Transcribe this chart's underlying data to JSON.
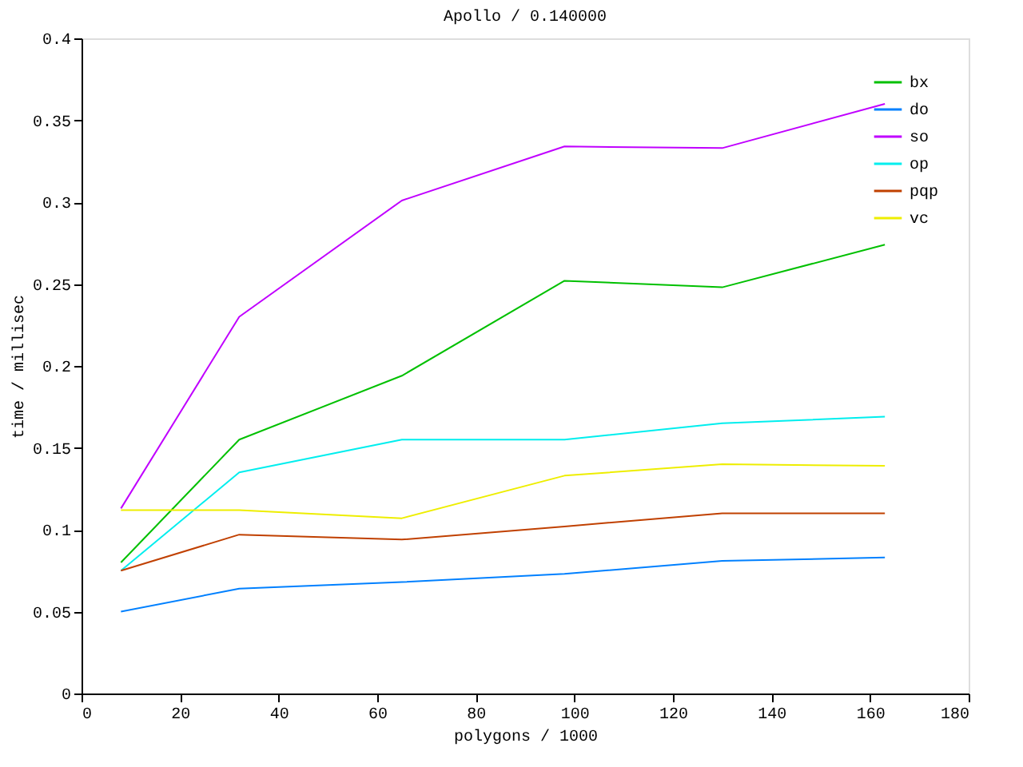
{
  "chart_data": {
    "type": "line",
    "title": "Apollo / 0.140000",
    "xlabel": "polygons / 1000",
    "ylabel": "time / millisec",
    "x": [
      8,
      32,
      65,
      98,
      130,
      163
    ],
    "xlim": [
      0,
      180
    ],
    "xticks": [
      0,
      20,
      40,
      60,
      80,
      100,
      120,
      140,
      160,
      180
    ],
    "ylim": [
      0,
      0.4
    ],
    "yticks": [
      0,
      0.05,
      0.1,
      0.15,
      0.2,
      0.25,
      0.3,
      0.35,
      0.4
    ],
    "grid": false,
    "legend": "top right",
    "marker": "none",
    "line_style": "solid",
    "series": [
      {
        "name": "bx",
        "color": "#00c000",
        "values": [
          0.08,
          0.155,
          0.194,
          0.252,
          0.248,
          0.274
        ]
      },
      {
        "name": "do",
        "color": "#0080ff",
        "values": [
          0.05,
          0.064,
          0.068,
          0.073,
          0.081,
          0.083
        ]
      },
      {
        "name": "so",
        "color": "#c000ff",
        "values": [
          0.113,
          0.23,
          0.301,
          0.334,
          0.333,
          0.36
        ]
      },
      {
        "name": "op",
        "color": "#00eeee",
        "values": [
          0.075,
          0.135,
          0.155,
          0.155,
          0.165,
          0.169
        ]
      },
      {
        "name": "pqp",
        "color": "#c04000",
        "values": [
          0.075,
          0.097,
          0.094,
          0.102,
          0.11,
          0.11
        ]
      },
      {
        "name": "vc",
        "color": "#eeee00",
        "values": [
          0.112,
          0.112,
          0.107,
          0.133,
          0.14,
          0.139
        ]
      }
    ]
  }
}
